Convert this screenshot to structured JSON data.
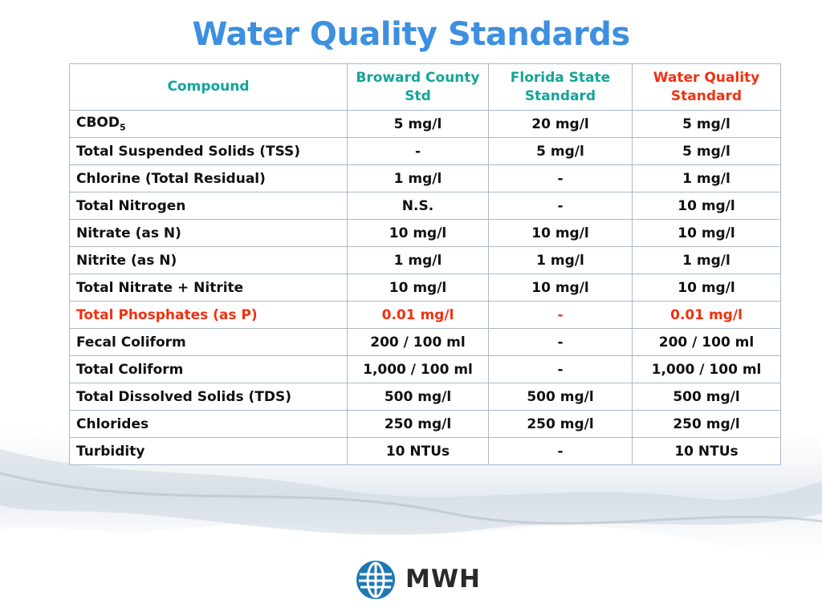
{
  "title": "Water Quality Standards",
  "table": {
    "headers": {
      "compound": "Compound",
      "broward": "Broward County Std",
      "florida": "Florida State Standard",
      "wqs": "Water Quality Standard"
    },
    "rows": [
      {
        "compound": "CBOD",
        "sub": "5",
        "broward": "5 mg/l",
        "florida": "20 mg/l",
        "wqs": "5 mg/l"
      },
      {
        "compound": "Total Suspended Solids (TSS)",
        "broward": "-",
        "florida": "5 mg/l",
        "wqs": "5 mg/l"
      },
      {
        "compound": "Chlorine (Total Residual)",
        "broward": "1 mg/l",
        "florida": "-",
        "wqs": "1 mg/l"
      },
      {
        "compound": "Total Nitrogen",
        "broward": "N.S.",
        "florida": "-",
        "wqs": "10 mg/l"
      },
      {
        "compound": "Nitrate (as N)",
        "broward": "10 mg/l",
        "florida": "10 mg/l",
        "wqs": "10 mg/l"
      },
      {
        "compound": "Nitrite (as N)",
        "broward": "1 mg/l",
        "florida": "1 mg/l",
        "wqs": "1 mg/l"
      },
      {
        "compound": "Total Nitrate + Nitrite",
        "broward": "10 mg/l",
        "florida": "10 mg/l",
        "wqs": "10 mg/l"
      },
      {
        "compound": "Total Phosphates (as P)",
        "broward": "0.01 mg/l",
        "florida": "-",
        "wqs": "0.01 mg/l",
        "highlight": true
      },
      {
        "compound": "Fecal Coliform",
        "broward": "200 / 100 ml",
        "florida": "-",
        "wqs": "200 / 100 ml"
      },
      {
        "compound": "Total Coliform",
        "broward": "1,000 / 100 ml",
        "florida": "-",
        "wqs": "1,000 / 100 ml"
      },
      {
        "compound": "Total Dissolved Solids (TDS)",
        "broward": "500 mg/l",
        "florida": "500 mg/l",
        "wqs": "500 mg/l"
      },
      {
        "compound": "Chlorides",
        "broward": "250 mg/l",
        "florida": "250 mg/l",
        "wqs": "250 mg/l"
      },
      {
        "compound": "Turbidity",
        "broward": "10 NTUs",
        "florida": "-",
        "wqs": "10 NTUs"
      }
    ]
  },
  "logo": {
    "text": "MWH",
    "icon": "globe-icon"
  },
  "colors": {
    "title": "#3d8fe0",
    "teal": "#13a39a",
    "red": "#f2300f",
    "logo_blue": "#1f78b4"
  }
}
